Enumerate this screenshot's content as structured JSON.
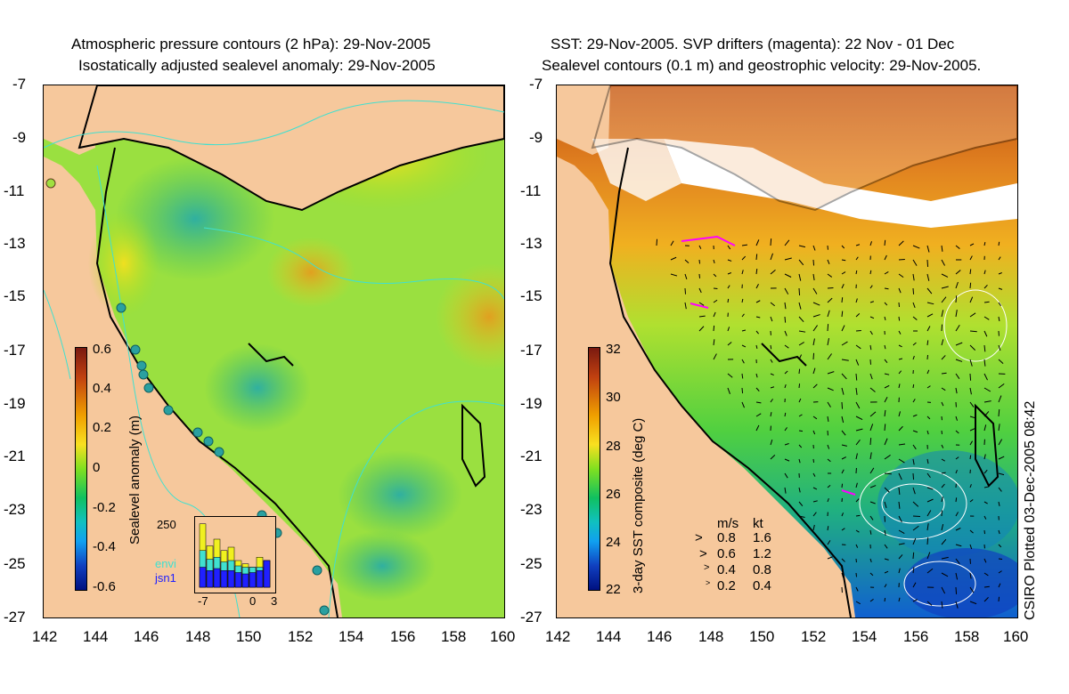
{
  "left_panel": {
    "title_line1": "Atmospheric pressure contours (2 hPa): 29-Nov-2005",
    "title_line2": "Isostatically adjusted sealevel anomaly: 29-Nov-2005",
    "y_ticks": [
      "-7",
      "-9",
      "-11",
      "-13",
      "-15",
      "-17",
      "-19",
      "-21",
      "-23",
      "-25",
      "-27"
    ],
    "x_ticks": [
      "142",
      "144",
      "146",
      "148",
      "150",
      "152",
      "154",
      "156",
      "158",
      "160"
    ],
    "colorbar_label": "Sealevel anomaly (m)",
    "colorbar_ticks": [
      "0.6",
      "0.4",
      "0.2",
      "0",
      "-0.2",
      "-0.4",
      "-0.6"
    ],
    "histogram": {
      "y_label": "250",
      "legend": [
        "envi",
        "jsn1"
      ],
      "x_ticks": [
        "-7",
        "0",
        "3"
      ],
      "legend_colors": [
        "#40e0d0",
        "#2020ff"
      ],
      "bars_top": [
        0.95,
        0.62,
        0.72,
        0.55,
        0.6,
        0.4,
        0.35,
        0.3,
        0.45,
        0.4
      ],
      "bars_mid": [
        0.55,
        0.42,
        0.45,
        0.38,
        0.4,
        0.32,
        0.3,
        0.3,
        0.3,
        0.4
      ],
      "bars_low": [
        0.3,
        0.25,
        0.28,
        0.25,
        0.25,
        0.22,
        0.2,
        0.22,
        0.25,
        0.4
      ]
    }
  },
  "right_panel": {
    "title_line1": "SST: 29-Nov-2005. SVP drifters (magenta): 22 Nov - 01 Dec",
    "title_line2": "Sealevel contours (0.1 m) and geostrophic velocity: 29-Nov-2005.",
    "y_ticks": [
      "-7",
      "-9",
      "-11",
      "-13",
      "-15",
      "-17",
      "-19",
      "-21",
      "-23",
      "-25",
      "-27"
    ],
    "x_ticks": [
      "142",
      "144",
      "146",
      "148",
      "150",
      "152",
      "154",
      "156",
      "158",
      "160"
    ],
    "colorbar_label": "3-day SST composite (deg C)",
    "colorbar_ticks": [
      "32",
      "30",
      "28",
      "26",
      "24",
      "22"
    ],
    "velocity_legend": {
      "header_ms": "m/s",
      "header_kt": "kt",
      "rows": [
        {
          "ms": "0.8",
          "kt": "1.6"
        },
        {
          "ms": "0.6",
          "kt": "1.2"
        },
        {
          "ms": "0.4",
          "kt": "0.8"
        },
        {
          "ms": "0.2",
          "kt": "0.4"
        }
      ]
    }
  },
  "credit": "CSIRO Plotted 03-Dec-2005 08:42",
  "colors": {
    "land": "#f6c89c",
    "contour": "#40e0d0",
    "drifter": "#ff00ff"
  }
}
